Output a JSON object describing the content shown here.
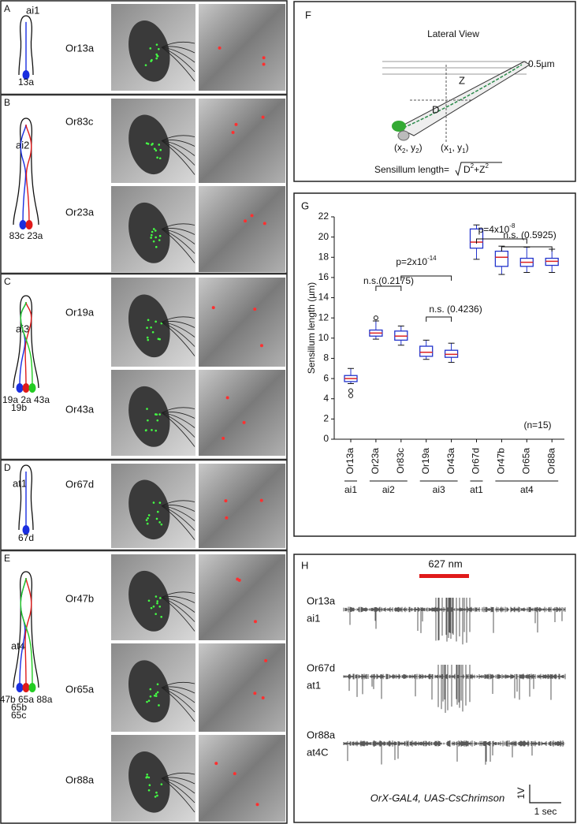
{
  "panels_left": [
    {
      "letter": "A",
      "sensillum": "ai1",
      "neurons": [
        "13a"
      ],
      "receptors": [
        "Or13a"
      ]
    },
    {
      "letter": "B",
      "sensillum": "ai2",
      "neurons": [
        "83c 23a"
      ],
      "receptors": [
        "Or83c",
        "Or23a"
      ]
    },
    {
      "letter": "C",
      "sensillum": "ai3",
      "neurons": [
        "19a 2a 43a",
        "19b"
      ],
      "receptors": [
        "Or19a",
        "Or43a"
      ]
    },
    {
      "letter": "D",
      "sensillum": "at1",
      "neurons": [
        "67d"
      ],
      "receptors": [
        "Or67d"
      ]
    },
    {
      "letter": "E",
      "sensillum": "at4",
      "neurons": [
        "47b 65a 88a",
        "65b",
        "65c"
      ],
      "receptors": [
        "Or47b",
        "Or65a",
        "Or88a"
      ]
    }
  ],
  "panel_f": {
    "letter": "F",
    "title": "Lateral View",
    "step_label": "0.5µm",
    "z_label": "Z",
    "d_label": "D",
    "point2": [
      "(x",
      "2",
      ", y",
      "2",
      ")"
    ],
    "point1": [
      "(x",
      "1",
      ", y",
      "1",
      ")"
    ],
    "formula_label": "Sensillum length=",
    "formula": [
      "D",
      "2",
      "+Z",
      "2"
    ]
  },
  "chart_data": {
    "type": "box",
    "letter": "G",
    "ylabel": "Sensillum length (µm)",
    "categories": [
      "Or13a",
      "Or23a",
      "Or83c",
      "Or19a",
      "Or43a",
      "Or67d",
      "Or47b",
      "Or65a",
      "Or88a"
    ],
    "groups": [
      "ai1",
      "ai2",
      "ai3",
      "at1",
      "at4"
    ],
    "boxes": [
      {
        "min": 5.5,
        "q1": 5.7,
        "median": 6.0,
        "q3": 6.3,
        "max": 7.0,
        "outliers": [
          4.8,
          4.3
        ]
      },
      {
        "min": 9.9,
        "q1": 10.2,
        "median": 10.5,
        "q3": 10.8,
        "max": 11.7,
        "outliers": [
          12.0
        ]
      },
      {
        "min": 9.3,
        "q1": 9.8,
        "median": 10.2,
        "q3": 10.7,
        "max": 11.2,
        "outliers": []
      },
      {
        "min": 7.9,
        "q1": 8.2,
        "median": 8.6,
        "q3": 9.2,
        "max": 9.8,
        "outliers": []
      },
      {
        "min": 7.6,
        "q1": 8.1,
        "median": 8.4,
        "q3": 8.8,
        "max": 9.5,
        "outliers": []
      },
      {
        "min": 17.8,
        "q1": 18.9,
        "median": 19.5,
        "q3": 20.8,
        "max": 21.2,
        "outliers": []
      },
      {
        "min": 16.3,
        "q1": 17.1,
        "median": 18.0,
        "q3": 18.6,
        "max": 19.1,
        "outliers": []
      },
      {
        "min": 16.5,
        "q1": 17.1,
        "median": 17.5,
        "q3": 17.9,
        "max": 19.0,
        "outliers": []
      },
      {
        "min": 16.5,
        "q1": 17.2,
        "median": 17.6,
        "q3": 17.9,
        "max": 18.8,
        "outliers": []
      }
    ],
    "box_color": "#2233cc",
    "median_color": "#dd2222",
    "ylim": [
      0,
      22
    ],
    "yticks": [
      0,
      2,
      4,
      6,
      8,
      10,
      12,
      14,
      16,
      18,
      20,
      22
    ],
    "annotations": [
      {
        "text": "n.s.(0.2175)"
      },
      {
        "text": "p=2x10",
        "exponent": "-14"
      },
      {
        "text": "n.s. (0.4236)"
      },
      {
        "text": "p=4x10",
        "exponent": "-8"
      },
      {
        "text": "n.s. (0.5925)"
      },
      {
        "text": "(n=15)"
      }
    ]
  },
  "panel_h": {
    "letter": "H",
    "stimulus": "627 nm",
    "traces": [
      [
        "Or13a",
        "ai1"
      ],
      [
        "Or67d",
        "at1"
      ],
      [
        "Or88a",
        "at4C"
      ]
    ],
    "genotype": "OrX-GAL4, UAS-CsChrimson",
    "scale_v": "1V",
    "scale_t": "1 sec"
  }
}
